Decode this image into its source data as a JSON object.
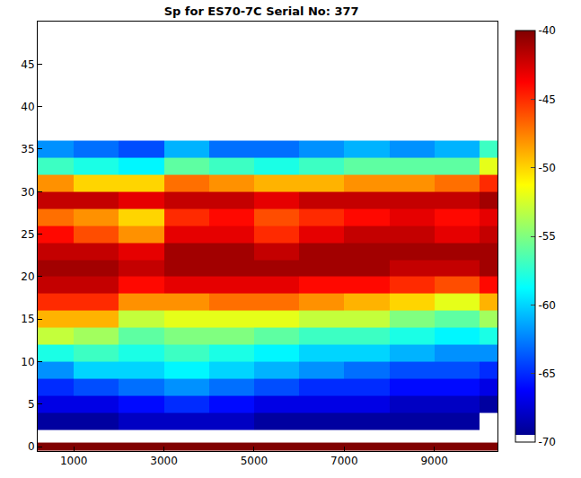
{
  "chart_data": {
    "type": "heatmap",
    "title": "Sp for ES70-7C Serial No: 377",
    "x_bins": [
      200,
      1000,
      2000,
      3000,
      4000,
      5000,
      6000,
      7000,
      8000,
      9000,
      10000,
      10400
    ],
    "y_bins": [
      -0.5,
      0.5,
      2,
      4,
      6,
      8,
      10,
      12,
      14,
      16,
      18,
      20,
      22,
      24,
      26,
      28,
      30,
      32,
      34,
      36
    ],
    "z": [
      [
        -40,
        -40,
        -40,
        -40,
        -40,
        -40,
        -40,
        -40,
        -40,
        -40,
        -40
      ],
      [
        -70,
        -70,
        -70,
        -70,
        -70,
        -70,
        -70,
        -70,
        -70,
        -70,
        -70
      ],
      [
        -69,
        -69,
        -68,
        -68,
        -68,
        -69,
        -69,
        -69,
        -69,
        -69,
        -70
      ],
      [
        -67,
        -67,
        -66,
        -65,
        -66,
        -67,
        -67,
        -67,
        -68,
        -68,
        -69
      ],
      [
        -65,
        -64,
        -63,
        -62,
        -63,
        -64,
        -65,
        -65,
        -66,
        -66,
        -67
      ],
      [
        -62,
        -60,
        -60,
        -59,
        -60,
        -61,
        -62,
        -63,
        -64,
        -64,
        -65
      ],
      [
        -58,
        -57,
        -58,
        -57,
        -58,
        -59,
        -60,
        -60,
        -61,
        -62,
        -62
      ],
      [
        -53,
        -54,
        -56,
        -55,
        -55,
        -56,
        -57,
        -57,
        -58,
        -59,
        -58
      ],
      [
        -49,
        -49,
        -53,
        -52,
        -52,
        -52,
        -53,
        -53,
        -55,
        -56,
        -54
      ],
      [
        -45,
        -45,
        -48,
        -48,
        -47,
        -47,
        -48,
        -49,
        -50,
        -52,
        -49
      ],
      [
        -42,
        -42,
        -44,
        -43,
        -43,
        -43,
        -44,
        -44,
        -45,
        -46,
        -44
      ],
      [
        -41,
        -41,
        -42,
        -41,
        -41,
        -41,
        -41,
        -41,
        -42,
        -42,
        -41
      ],
      [
        -42,
        -42,
        -43,
        -41,
        -41,
        -42,
        -41,
        -41,
        -41,
        -41,
        -41
      ],
      [
        -44,
        -46,
        -48,
        -43,
        -43,
        -45,
        -43,
        -42,
        -42,
        -43,
        -42
      ],
      [
        -47,
        -48,
        -50,
        -45,
        -44,
        -46,
        -45,
        -44,
        -43,
        -44,
        -43
      ],
      [
        -42,
        -42,
        -43,
        -42,
        -42,
        -43,
        -42,
        -42,
        -42,
        -42,
        -41
      ],
      [
        -48,
        -50,
        -50,
        -47,
        -48,
        -49,
        -49,
        -48,
        -48,
        -47,
        -45
      ],
      [
        -57,
        -58,
        -59,
        -56,
        -57,
        -58,
        -57,
        -56,
        -56,
        -56,
        -52
      ],
      [
        -62,
        -63,
        -64,
        -61,
        -63,
        -63,
        -62,
        -61,
        -62,
        -61,
        -57
      ]
    ],
    "xlim": [
      200,
      10400
    ],
    "ylim": [
      -0.5,
      50
    ],
    "xticks": [
      1000,
      3000,
      5000,
      7000,
      9000
    ],
    "yticks": [
      0,
      5,
      10,
      15,
      20,
      25,
      30,
      35,
      40,
      45
    ],
    "clim": [
      -70,
      -40
    ],
    "cticks": [
      -70,
      -65,
      -60,
      -55,
      -50,
      -45,
      -40
    ],
    "grid": false
  }
}
